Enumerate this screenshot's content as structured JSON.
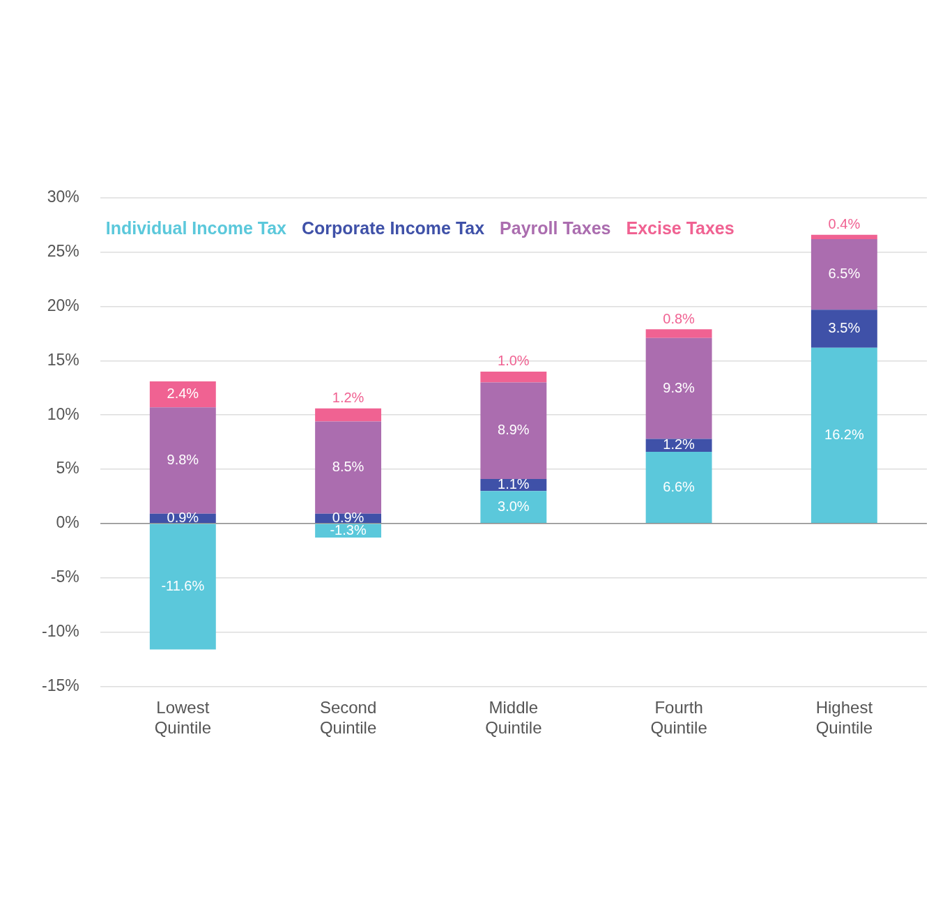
{
  "chart_data": {
    "type": "bar",
    "categories": [
      "Lowest Quintile",
      "Second Quintile",
      "Middle Quintile",
      "Fourth Quintile",
      "Highest Quintile"
    ],
    "series": [
      {
        "name": "Individual Income Tax",
        "color": "#5bc8db",
        "values": [
          -11.6,
          -1.3,
          3.0,
          6.6,
          16.2
        ],
        "value_labels": [
          "-11.6%",
          "-1.3%",
          "3.0%",
          "6.6%",
          "16.2%"
        ]
      },
      {
        "name": "Corporate Income Tax",
        "color": "#3f51a8",
        "values": [
          0.9,
          0.9,
          1.1,
          1.2,
          3.5
        ],
        "value_labels": [
          "0.9%",
          "0.9%",
          "1.1%",
          "1.2%",
          "3.5%"
        ]
      },
      {
        "name": "Payroll Taxes",
        "color": "#ab6daf",
        "values": [
          9.8,
          8.5,
          8.9,
          9.3,
          6.5
        ],
        "value_labels": [
          "9.8%",
          "8.5%",
          "8.9%",
          "9.3%",
          "6.5%"
        ]
      },
      {
        "name": "Excise Taxes",
        "color": "#f06292",
        "values": [
          2.4,
          1.2,
          1.0,
          0.8,
          0.4
        ],
        "value_labels": [
          "2.4%",
          "1.2%",
          "1.0%",
          "0.8%",
          "0.4%"
        ]
      }
    ],
    "ylim": [
      -15,
      30
    ],
    "yticks": [
      {
        "value": -15,
        "label": "-15%"
      },
      {
        "value": -10,
        "label": "-10%"
      },
      {
        "value": -5,
        "label": "-5%"
      },
      {
        "value": 0,
        "label": "0%"
      },
      {
        "value": 5,
        "label": "5%"
      },
      {
        "value": 10,
        "label": "10%"
      },
      {
        "value": 15,
        "label": "15%"
      },
      {
        "value": 20,
        "label": "20%"
      },
      {
        "value": 25,
        "label": "25%"
      },
      {
        "value": 30,
        "label": "30%"
      }
    ],
    "stacked": true,
    "grid": true,
    "data_labels": true,
    "legend": "upper left"
  }
}
